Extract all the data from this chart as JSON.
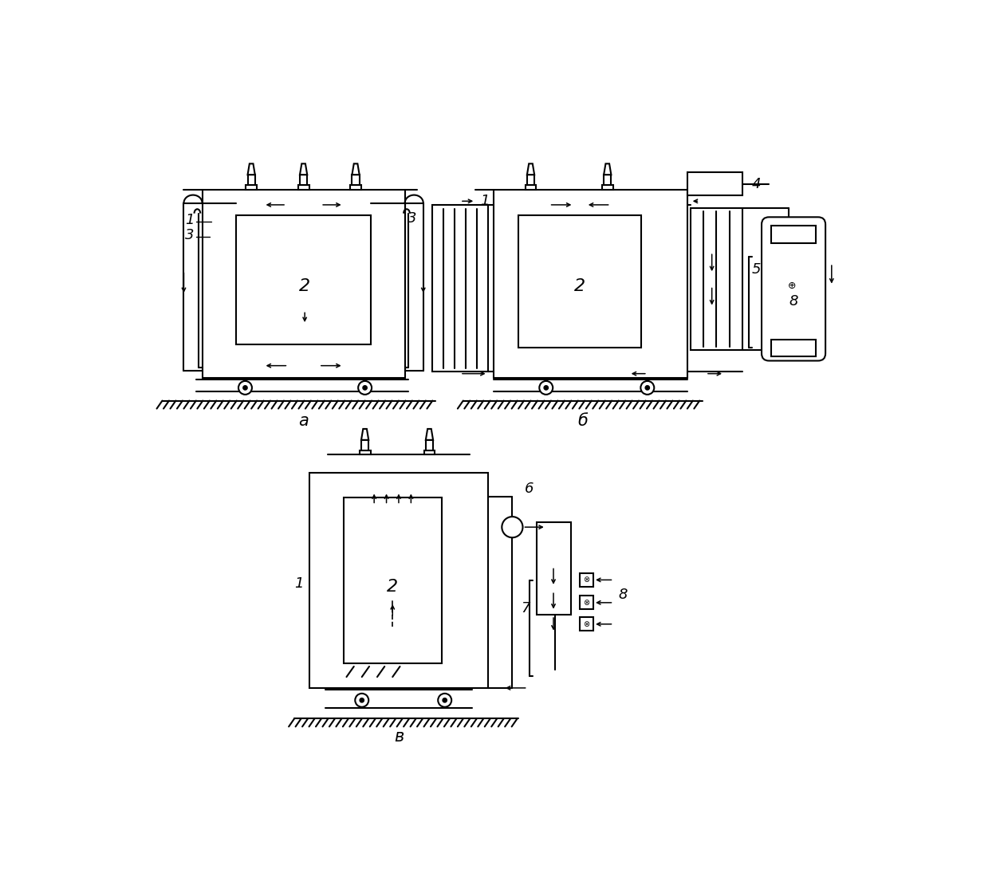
{
  "bg": "#ffffff",
  "lc": "#000000",
  "lw": 1.5,
  "labels": {
    "a": "а",
    "b": "б",
    "v": "в"
  },
  "nums": [
    "1",
    "2",
    "3",
    "4",
    "5",
    "6",
    "7",
    "8"
  ]
}
